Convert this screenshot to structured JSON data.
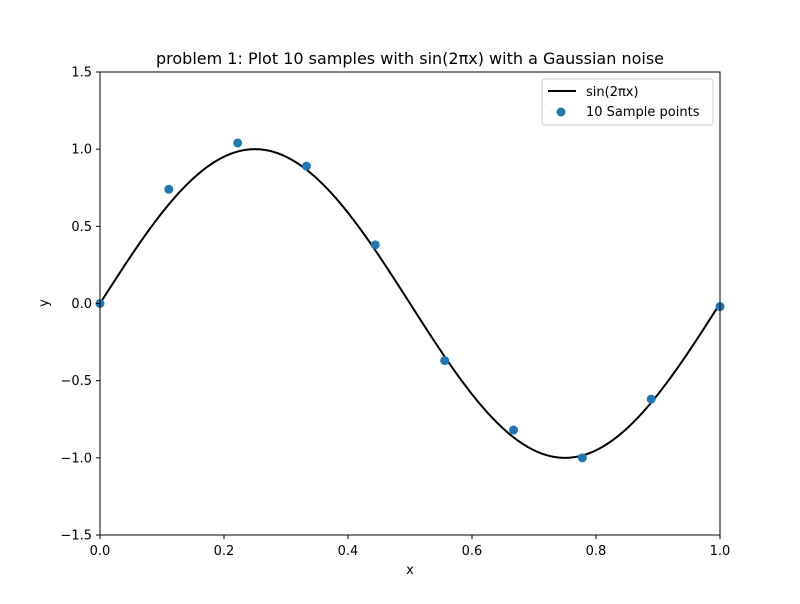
{
  "chart_data": {
    "type": "line",
    "title": "problem 1: Plot 10 samples with sin(2πx) with a Gaussian noise",
    "xlabel": "x",
    "ylabel": "y",
    "xlim": [
      0.0,
      1.0
    ],
    "ylim": [
      -1.5,
      1.5
    ],
    "x_ticks": [
      "0.0",
      "0.2",
      "0.4",
      "0.6",
      "0.8",
      "1.0"
    ],
    "y_ticks": [
      "−1.5",
      "−1.0",
      "−0.5",
      "0.0",
      "0.5",
      "1.0",
      "1.5"
    ],
    "grid": false,
    "legend_position": "top-right",
    "series": [
      {
        "name": "sin(2πx)",
        "kind": "line",
        "function": "sin(2πx)",
        "color": "#000000"
      },
      {
        "name": "10 Sample points",
        "kind": "scatter",
        "color": "#1f77b4",
        "x": [
          0.0,
          0.111,
          0.222,
          0.333,
          0.444,
          0.556,
          0.667,
          0.778,
          0.889,
          1.0
        ],
        "y": [
          0.0,
          0.74,
          1.04,
          0.89,
          0.38,
          -0.37,
          -0.82,
          -1.0,
          -0.62,
          -0.02
        ]
      }
    ]
  }
}
